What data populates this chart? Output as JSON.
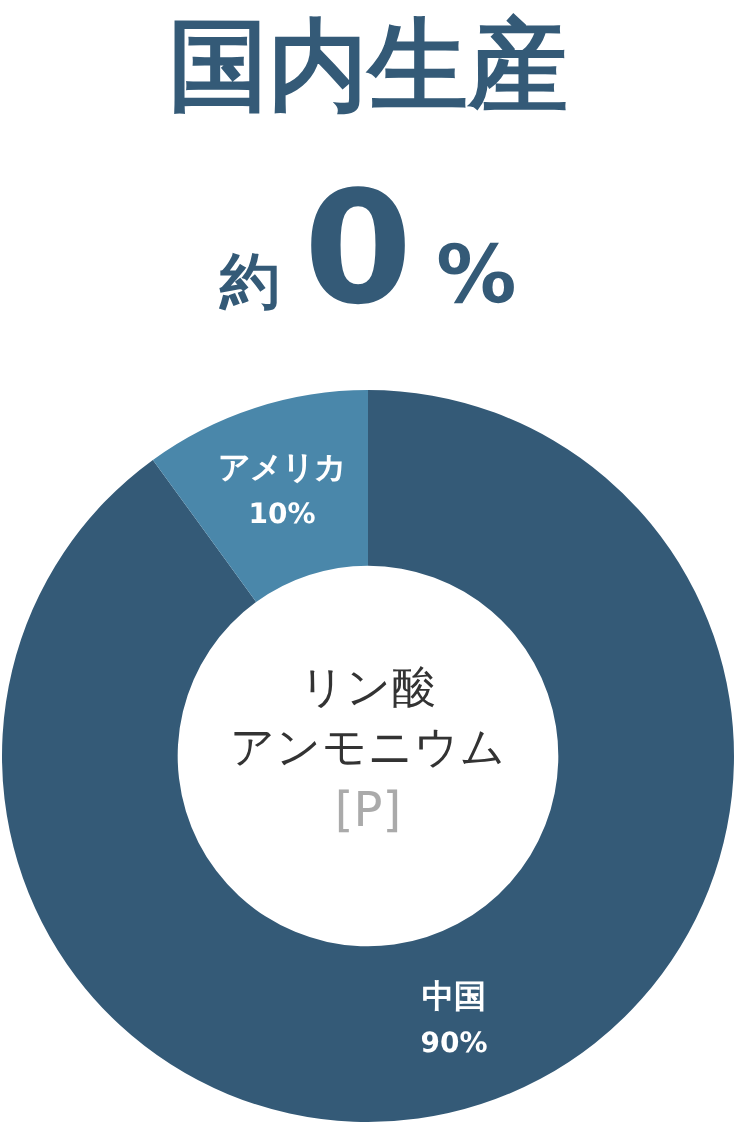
{
  "chart_data": {
    "type": "donut",
    "title": "国内生産",
    "subtitle": "約0%",
    "categories": [
      "中国",
      "アメリカ"
    ],
    "values": [
      90,
      10
    ],
    "colors": [
      "#345a77",
      "#4a87aa"
    ],
    "value_labels": [
      "90%",
      "10%"
    ],
    "annotations": [
      "リン酸",
      "アンモニウム",
      "[P]"
    ]
  }
}
